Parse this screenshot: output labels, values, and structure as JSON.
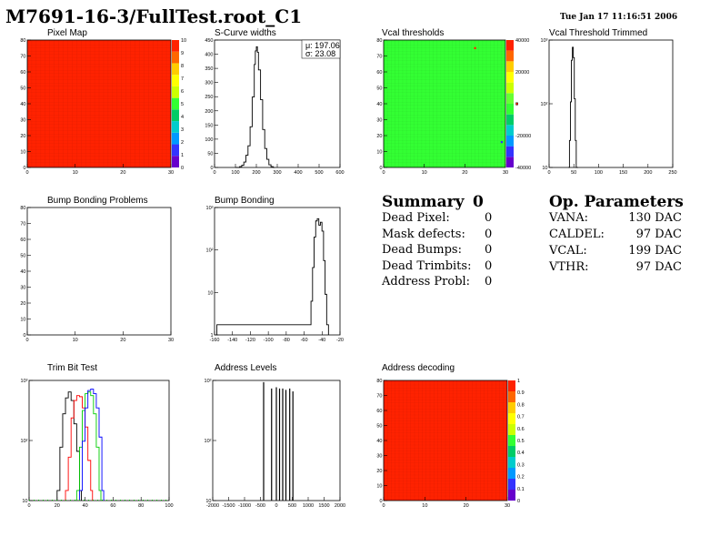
{
  "title": "M7691-16-3/FullTest.root_C1",
  "date": "Tue Jan 17 11:16:51 2006",
  "panels": {
    "pixel_map": "Pixel Map",
    "scurve": "S-Curve widths",
    "vcal_thr": "Vcal thresholds",
    "vcal_trim": "Vcal Threshold Trimmed",
    "bump_problems": "Bump Bonding Problems",
    "bump_bonding": "Bump Bonding",
    "trim_bit": "Trim Bit Test",
    "address_levels": "Address Levels",
    "address_decoding": "Address decoding"
  },
  "stats": {
    "mean": "μ: 197.06",
    "sigma": "σ: 23.08"
  },
  "summary": {
    "title": "Summary",
    "count": "0",
    "rows": [
      {
        "label": "Dead Pixel:",
        "value": "0"
      },
      {
        "label": "Mask defects:",
        "value": "0"
      },
      {
        "label": "Dead Bumps:",
        "value": "0"
      },
      {
        "label": "Dead Trimbits:",
        "value": "0"
      },
      {
        "label": "Address Probl:",
        "value": "0"
      }
    ]
  },
  "op_params": {
    "title": "Op. Parameters",
    "rows": [
      {
        "label": "VANA:",
        "value": "130 DAC"
      },
      {
        "label": "CALDEL:",
        "value": "97 DAC"
      },
      {
        "label": "VCAL:",
        "value": "199 DAC"
      },
      {
        "label": "VTHR:",
        "value": "97 DAC"
      }
    ]
  },
  "chart_data": [
    {
      "id": "pixel_map",
      "type": "heatmap",
      "xticks": [
        "0",
        "10",
        "20",
        "30"
      ],
      "yticks": [
        "0",
        "10",
        "20",
        "30",
        "40",
        "50",
        "60",
        "70",
        "80"
      ],
      "zticks": [
        "0",
        "1",
        "2",
        "3",
        "4",
        "5",
        "6",
        "7",
        "8",
        "9",
        "10"
      ],
      "xlim": [
        0,
        32
      ],
      "ylim": [
        0,
        80
      ],
      "zlim": [
        0,
        10
      ],
      "value": 10,
      "palette": [
        "#6600cc",
        "#3333ff",
        "#0099ff",
        "#00cccc",
        "#00cc66",
        "#33ff33",
        "#ccff00",
        "#ffff00",
        "#ffcc00",
        "#ff6600",
        "#ff2200"
      ]
    },
    {
      "id": "scurve",
      "type": "histogram",
      "xticks": [
        "0",
        "100",
        "200",
        "300",
        "400",
        "500",
        "600"
      ],
      "yticks": [
        "0",
        "50",
        "100",
        "150",
        "200",
        "250",
        "300",
        "350",
        "400",
        "450"
      ],
      "xlim": [
        0,
        600
      ],
      "ylim": [
        0,
        470
      ],
      "bins": [
        [
          100,
          0
        ],
        [
          120,
          3
        ],
        [
          130,
          8
        ],
        [
          140,
          20
        ],
        [
          150,
          45
        ],
        [
          160,
          80
        ],
        [
          170,
          150
        ],
        [
          180,
          260
        ],
        [
          190,
          380
        ],
        [
          195,
          430
        ],
        [
          200,
          445
        ],
        [
          205,
          425
        ],
        [
          210,
          360
        ],
        [
          220,
          250
        ],
        [
          230,
          140
        ],
        [
          240,
          70
        ],
        [
          250,
          30
        ],
        [
          260,
          10
        ],
        [
          270,
          3
        ],
        [
          280,
          0
        ]
      ]
    },
    {
      "id": "vcal_thr",
      "type": "heatmap",
      "xticks": [
        "0",
        "10",
        "20",
        "30"
      ],
      "yticks": [
        "0",
        "10",
        "20",
        "30",
        "40",
        "50",
        "60",
        "70",
        "80"
      ],
      "zticks": [
        "-40000",
        "-20000",
        "0",
        "20000",
        "40000"
      ],
      "xlim": [
        0,
        32
      ],
      "ylim": [
        0,
        80
      ],
      "zlim": [
        -50000,
        50000
      ],
      "base_color": "#33ff33",
      "outliers": [
        {
          "x": 24,
          "y": 75,
          "color": "#ff2200"
        },
        {
          "x": 35,
          "y": 40,
          "color": "#ff2200"
        },
        {
          "x": 31,
          "y": 16,
          "color": "#3333ff"
        }
      ]
    },
    {
      "id": "vcal_trim",
      "type": "histogram",
      "log_y": true,
      "xticks": [
        "0",
        "50",
        "100",
        "150",
        "200",
        "250"
      ],
      "yticks": [
        "10",
        "10²",
        "10³"
      ],
      "xlim": [
        0,
        255
      ],
      "ylim": [
        1,
        2000
      ],
      "bins": [
        [
          40,
          1
        ],
        [
          42,
          5
        ],
        [
          44,
          50
        ],
        [
          46,
          600
        ],
        [
          48,
          1300
        ],
        [
          50,
          700
        ],
        [
          52,
          60
        ],
        [
          54,
          5
        ],
        [
          56,
          1
        ]
      ]
    },
    {
      "id": "bump_problems",
      "type": "heatmap",
      "xticks": [
        "0",
        "10",
        "20",
        "30"
      ],
      "yticks": [
        "0",
        "10",
        "20",
        "30",
        "40",
        "50",
        "60",
        "70",
        "80"
      ],
      "xlim": [
        0,
        32
      ],
      "ylim": [
        0,
        80
      ]
    },
    {
      "id": "bump_bonding",
      "type": "histogram",
      "log_y": true,
      "xticks": [
        "-160",
        "-140",
        "-120",
        "-100",
        "-80",
        "-60",
        "-40",
        "-20"
      ],
      "yticks": [
        "1",
        "10",
        "10²",
        "10³"
      ],
      "xlim": [
        -165,
        -5
      ],
      "ylim": [
        0.5,
        3000
      ],
      "bins": [
        [
          -162,
          1
        ],
        [
          -44,
          1
        ],
        [
          -42,
          5
        ],
        [
          -40,
          50
        ],
        [
          -38,
          400
        ],
        [
          -36,
          1200
        ],
        [
          -34,
          1400
        ],
        [
          -32,
          900
        ],
        [
          -30,
          1100
        ],
        [
          -28,
          600
        ],
        [
          -26,
          80
        ],
        [
          -24,
          8
        ],
        [
          -22,
          1
        ]
      ]
    },
    {
      "id": "trim_bit",
      "type": "histogram",
      "log_y": true,
      "xticks": [
        "0",
        "20",
        "40",
        "60",
        "80",
        "100"
      ],
      "yticks": [
        "10",
        "10²",
        "10³"
      ],
      "xlim": [
        0,
        100
      ],
      "ylim": [
        0.5,
        2000
      ],
      "series": [
        {
          "color": "#000000",
          "bins": [
            [
              20,
              1
            ],
            [
              22,
              20
            ],
            [
              24,
              200
            ],
            [
              26,
              600
            ],
            [
              28,
              900
            ],
            [
              30,
              500
            ],
            [
              32,
              100
            ],
            [
              34,
              15
            ],
            [
              36,
              1
            ]
          ]
        },
        {
          "color": "#ff0000",
          "bins": [
            [
              26,
              1
            ],
            [
              28,
              10
            ],
            [
              30,
              150
            ],
            [
              32,
              500
            ],
            [
              34,
              700
            ],
            [
              36,
              650
            ],
            [
              38,
              300
            ],
            [
              40,
              80
            ],
            [
              42,
              8
            ],
            [
              44,
              1
            ]
          ]
        },
        {
          "color": "#00cc00",
          "bins": [
            [
              34,
              1
            ],
            [
              36,
              20
            ],
            [
              38,
              250
            ],
            [
              40,
              800
            ],
            [
              42,
              900
            ],
            [
              44,
              700
            ],
            [
              46,
              200
            ],
            [
              48,
              20
            ],
            [
              50,
              1
            ]
          ]
        },
        {
          "color": "#0000ff",
          "bins": [
            [
              36,
              1
            ],
            [
              38,
              30
            ],
            [
              40,
              300
            ],
            [
              42,
              1000
            ],
            [
              44,
              1100
            ],
            [
              46,
              800
            ],
            [
              48,
              300
            ],
            [
              50,
              40
            ],
            [
              52,
              1
            ]
          ]
        }
      ]
    },
    {
      "id": "address_levels",
      "type": "histogram",
      "log_y": true,
      "xticks": [
        "-2000",
        "-1500",
        "-1000",
        "-500",
        "0",
        "500",
        "1000",
        "1500",
        "2000"
      ],
      "yticks": [
        "10",
        "10²",
        "10³"
      ],
      "xlim": [
        -2000,
        2000
      ],
      "ylim": [
        1,
        2000
      ],
      "peaks": [
        [
          -400,
          1800
        ],
        [
          -150,
          1200
        ],
        [
          0,
          1300
        ],
        [
          100,
          1200
        ],
        [
          200,
          1200
        ],
        [
          300,
          1100
        ],
        [
          420,
          1200
        ],
        [
          520,
          1000
        ]
      ]
    },
    {
      "id": "address_decoding",
      "type": "heatmap",
      "xticks": [
        "0",
        "10",
        "20",
        "30"
      ],
      "yticks": [
        "0",
        "10",
        "20",
        "30",
        "40",
        "50",
        "60",
        "70",
        "80"
      ],
      "zticks": [
        "0",
        "0.1",
        "0.2",
        "0.3",
        "0.4",
        "0.5",
        "0.6",
        "0.7",
        "0.8",
        "0.9",
        "1"
      ],
      "xlim": [
        0,
        32
      ],
      "ylim": [
        0,
        80
      ],
      "zlim": [
        0,
        1
      ],
      "value": 1
    }
  ]
}
